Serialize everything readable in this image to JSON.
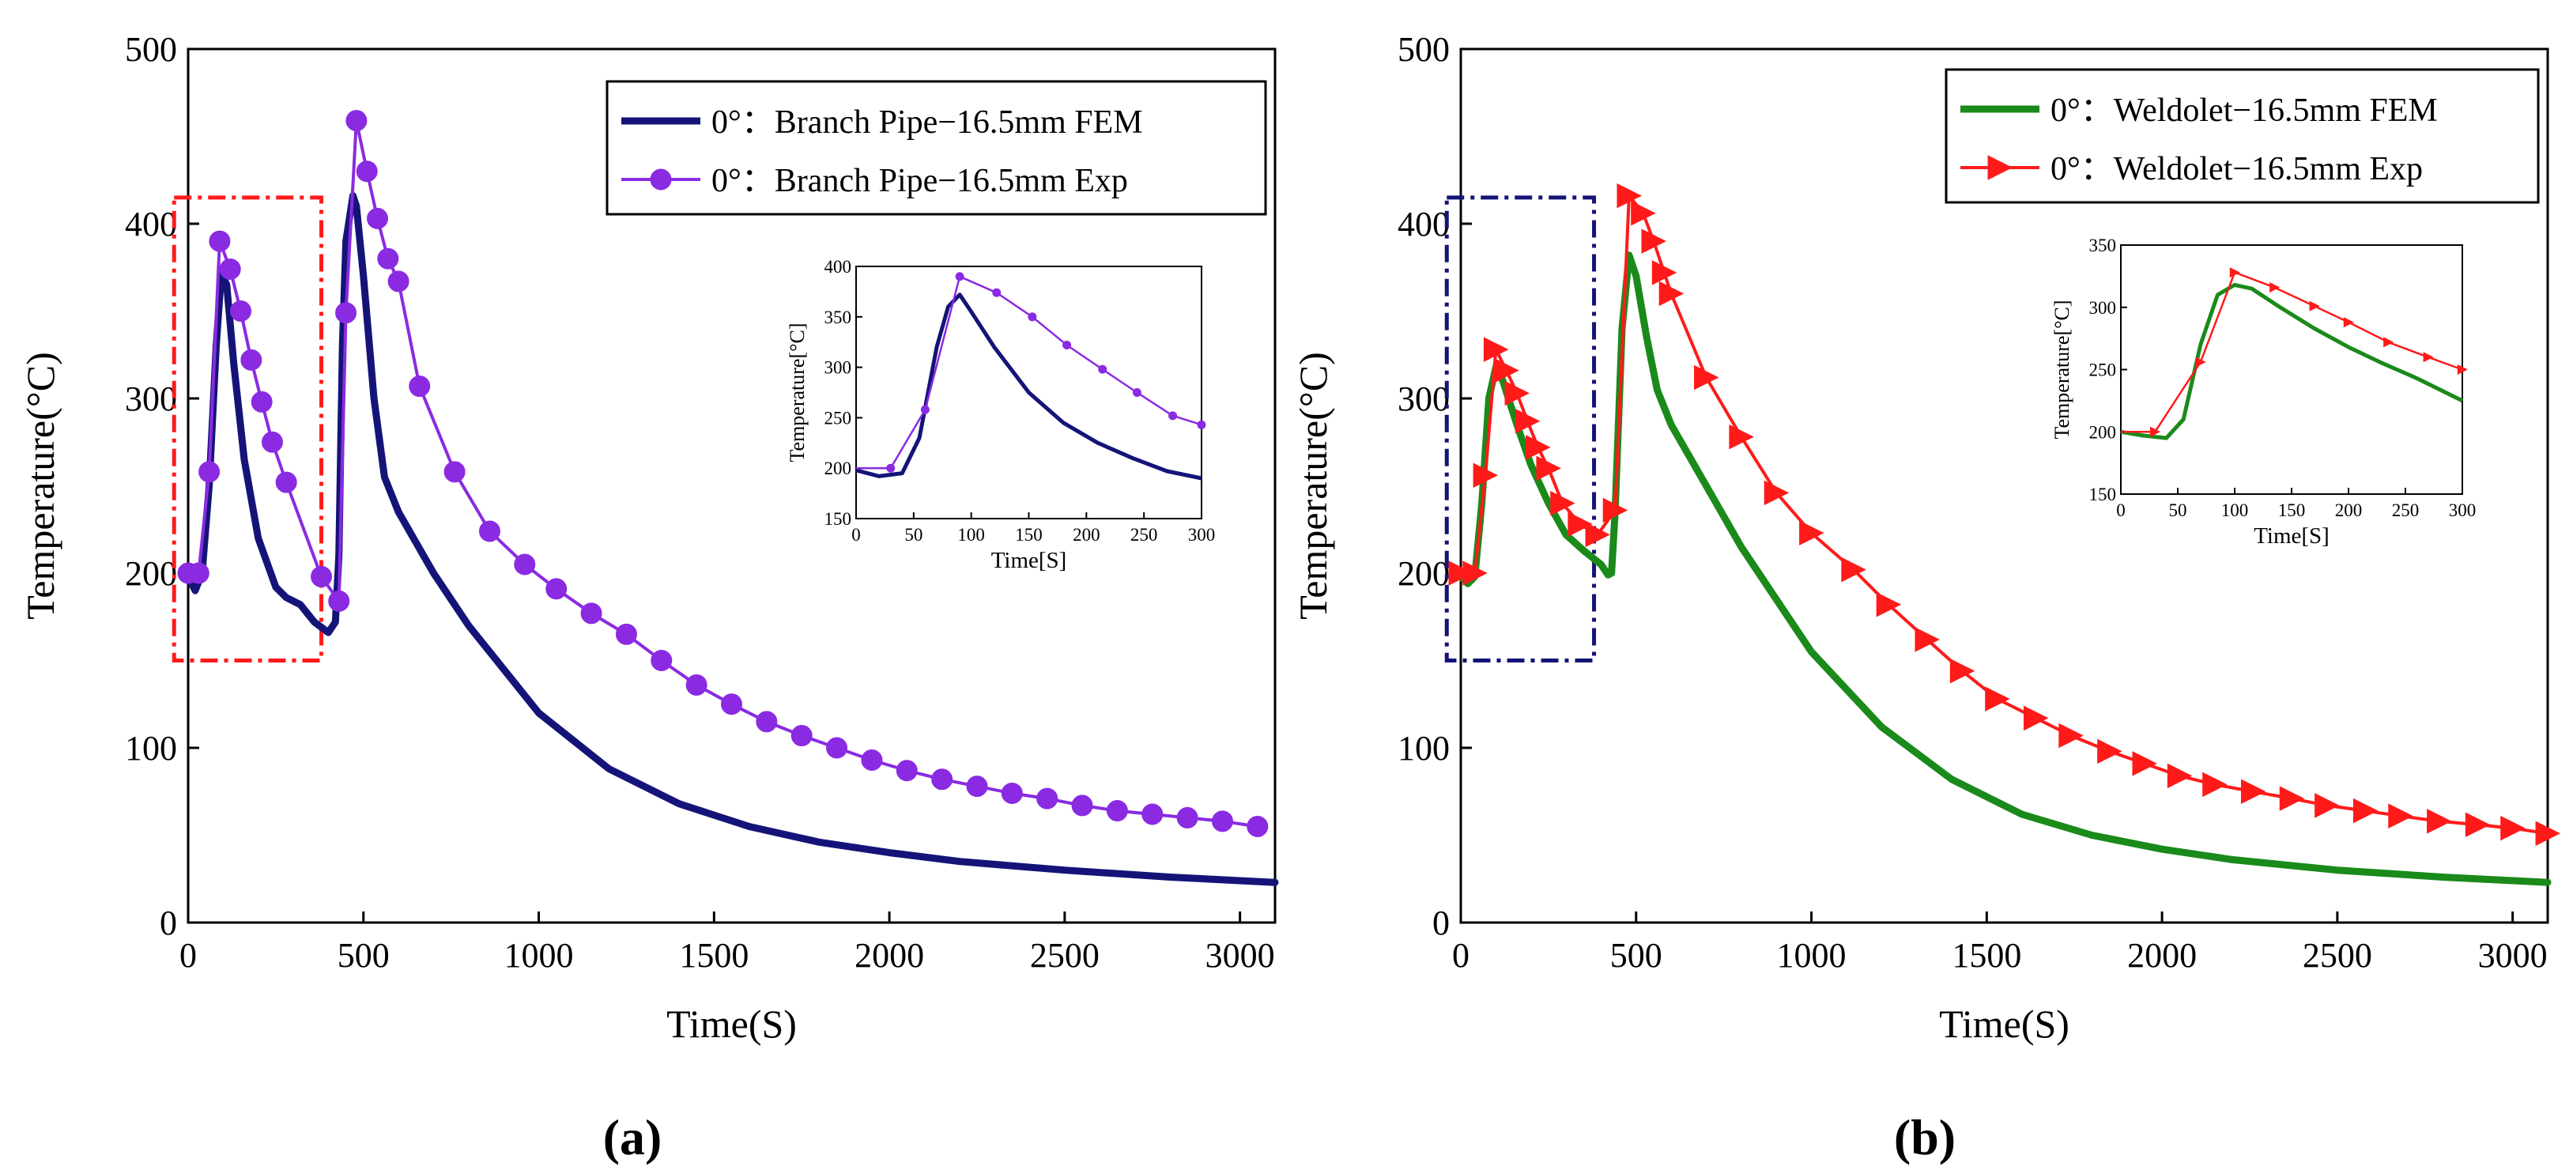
{
  "captions": [
    "(a)",
    "(b)"
  ],
  "chart_data": [
    {
      "id": "a",
      "type": "line",
      "xlabel": "Time(S)",
      "ylabel": "Temperature(°C)",
      "xlim": [
        0,
        3100
      ],
      "ylim": [
        0,
        500
      ],
      "xticks": [
        "0",
        "500",
        "1000",
        "1500",
        "2000",
        "2500",
        "3000"
      ],
      "yticks": [
        "0",
        "100",
        "200",
        "300",
        "400",
        "500"
      ],
      "legend_position": "top-right",
      "highlight_box": {
        "x": [
          -40,
          380
        ],
        "y": [
          150,
          415
        ],
        "color": "#ff1a1a",
        "style": "dash-dot"
      },
      "series": [
        {
          "name": "0°：Branch Pipe−16.5mm FEM",
          "color": "#141478",
          "marker": "none",
          "x": [
            0,
            20,
            40,
            60,
            80,
            95,
            110,
            130,
            160,
            200,
            250,
            280,
            320,
            360,
            400,
            420,
            430,
            440,
            450,
            470,
            480,
            500,
            530,
            560,
            600,
            700,
            800,
            1000,
            1200,
            1400,
            1600,
            1800,
            2000,
            2200,
            2500,
            2800,
            3100
          ],
          "y": [
            198,
            190,
            200,
            250,
            330,
            372,
            365,
            320,
            265,
            220,
            192,
            186,
            182,
            172,
            166,
            172,
            210,
            330,
            390,
            416,
            410,
            370,
            300,
            255,
            235,
            200,
            170,
            120,
            88,
            68,
            55,
            46,
            40,
            35,
            30,
            26,
            23
          ]
        },
        {
          "name": "0°：Branch Pipe−16.5mm Exp",
          "color": "#8a2be2",
          "marker": "circle",
          "x": [
            0,
            30,
            60,
            90,
            120,
            150,
            180,
            210,
            240,
            280,
            380,
            430,
            450,
            480,
            510,
            540,
            570,
            600,
            660,
            760,
            860,
            960,
            1050,
            1150,
            1250,
            1350,
            1450,
            1550,
            1650,
            1750,
            1850,
            1950,
            2050,
            2150,
            2250,
            2350,
            2450,
            2550,
            2650,
            2750,
            2850,
            2950,
            3050
          ],
          "y": [
            200,
            200,
            258,
            390,
            374,
            350,
            322,
            298,
            275,
            252,
            198,
            184,
            349,
            459,
            430,
            403,
            380,
            367,
            307,
            258,
            224,
            205,
            191,
            177,
            165,
            150,
            136,
            125,
            115,
            107,
            100,
            93,
            87,
            82,
            78,
            74,
            71,
            67,
            64,
            62,
            60,
            58,
            55
          ]
        }
      ],
      "inset": {
        "xlabel": "Time[S]",
        "ylabel": "Temperature[°C]",
        "xlim": [
          0,
          300
        ],
        "ylim": [
          150,
          400
        ],
        "xticks": [
          "0",
          "50",
          "100",
          "150",
          "200",
          "250",
          "300"
        ],
        "yticks": [
          "150",
          "200",
          "250",
          "300",
          "350",
          "400"
        ],
        "series": [
          {
            "color": "#141478",
            "x": [
              0,
              20,
              40,
              55,
              70,
              80,
              90,
              100,
              120,
              150,
              180,
              210,
              240,
              270,
              300
            ],
            "y": [
              198,
              192,
              195,
              230,
              320,
              360,
              372,
              355,
              320,
              275,
              245,
              225,
              210,
              197,
              190
            ]
          },
          {
            "color": "#8a2be2",
            "x": [
              0,
              30,
              60,
              90,
              122,
              153,
              183,
              214,
              244,
              275,
              300
            ],
            "y": [
              200,
              200,
              258,
              390,
              374,
              350,
              322,
              298,
              275,
              252,
              243
            ]
          }
        ]
      }
    },
    {
      "id": "b",
      "type": "line",
      "xlabel": "Time(S)",
      "ylabel": "Temperature(°C)",
      "xlim": [
        0,
        3100
      ],
      "ylim": [
        0,
        500
      ],
      "xticks": [
        "0",
        "500",
        "1000",
        "1500",
        "2000",
        "2500",
        "3000"
      ],
      "yticks": [
        "0",
        "100",
        "200",
        "300",
        "400",
        "500"
      ],
      "legend_position": "top-right",
      "highlight_box": {
        "x": [
          -40,
          380
        ],
        "y": [
          150,
          415
        ],
        "color": "#141478",
        "style": "dash-dot"
      },
      "series": [
        {
          "name": "0°：Weldolet−16.5mm FEM",
          "color": "#1a8a1a",
          "marker": "none",
          "x": [
            0,
            20,
            40,
            60,
            80,
            100,
            120,
            160,
            200,
            250,
            300,
            350,
            400,
            420,
            430,
            440,
            460,
            480,
            500,
            530,
            560,
            600,
            700,
            800,
            1000,
            1200,
            1400,
            1600,
            1800,
            2000,
            2200,
            2500,
            2800,
            3100
          ],
          "y": [
            198,
            194,
            198,
            240,
            300,
            318,
            310,
            285,
            262,
            240,
            222,
            213,
            205,
            199,
            200,
            235,
            340,
            382,
            370,
            335,
            305,
            285,
            250,
            215,
            155,
            112,
            82,
            62,
            50,
            42,
            36,
            30,
            26,
            23
          ]
        },
        {
          "name": "0°：Weldolet−16.5mm Exp",
          "color": "#ff1a1a",
          "marker": "triangle-right",
          "x": [
            0,
            40,
            70,
            100,
            130,
            160,
            190,
            220,
            250,
            290,
            340,
            390,
            440,
            480,
            520,
            550,
            580,
            600,
            700,
            800,
            900,
            1000,
            1120,
            1220,
            1330,
            1430,
            1530,
            1640,
            1740,
            1850,
            1950,
            2050,
            2150,
            2260,
            2370,
            2470,
            2580,
            2680,
            2790,
            2900,
            3000,
            3100
          ],
          "y": [
            200,
            200,
            256,
            328,
            316,
            303,
            287,
            272,
            260,
            240,
            228,
            222,
            236,
            416,
            406,
            390,
            372,
            360,
            312,
            278,
            246,
            223,
            202,
            182,
            162,
            144,
            128,
            117,
            107,
            98,
            91,
            84,
            79,
            75,
            71,
            67,
            64,
            61,
            58,
            56,
            54,
            51
          ]
        }
      ],
      "inset": {
        "xlabel": "Time[S]",
        "ylabel": "Temperature[°C]",
        "xlim": [
          0,
          300
        ],
        "ylim": [
          150,
          350
        ],
        "xticks": [
          "0",
          "50",
          "100",
          "150",
          "200",
          "250",
          "300"
        ],
        "yticks": [
          "150",
          "200",
          "250",
          "300",
          "350"
        ],
        "series": [
          {
            "color": "#1a8a1a",
            "x": [
              0,
              20,
              40,
              55,
              70,
              85,
              100,
              115,
              140,
              170,
              200,
              230,
              260,
              300
            ],
            "y": [
              200,
              197,
              195,
              210,
              270,
              310,
              318,
              315,
              300,
              283,
              268,
              255,
              243,
              225
            ]
          },
          {
            "color": "#ff1a1a",
            "x": [
              0,
              30,
              70,
              100,
              135,
              170,
              200,
              235,
              270,
              300
            ],
            "y": [
              200,
              200,
              256,
              328,
              316,
              301,
              288,
              272,
              260,
              250
            ]
          }
        ]
      }
    }
  ]
}
